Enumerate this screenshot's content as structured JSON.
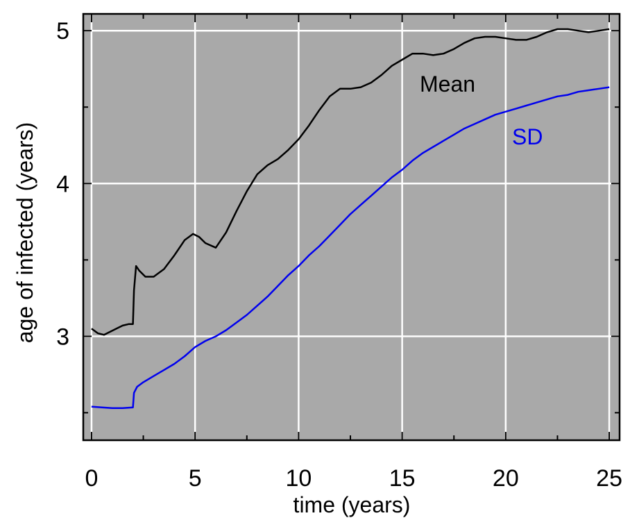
{
  "chart_data": {
    "type": "line",
    "title": "",
    "xlabel": "time (years)",
    "ylabel": "age of infected (years)",
    "xlim": [
      -0.4,
      25.5
    ],
    "ylim": [
      2.32,
      5.11
    ],
    "xticks": [
      "0",
      "5",
      "10",
      "15",
      "20",
      "25"
    ],
    "yticks": [
      "3",
      "4",
      "5"
    ],
    "grid": true,
    "background": "#a9a9a9",
    "series": [
      {
        "name": "Mean",
        "color": "#000000",
        "x": [
          0,
          0.3,
          0.6,
          0.9,
          1.2,
          1.5,
          1.8,
          2.0,
          2.05,
          2.15,
          2.3,
          2.6,
          3.0,
          3.5,
          4.0,
          4.5,
          4.9,
          5.2,
          5.5,
          6.0,
          6.5,
          7.0,
          7.5,
          8.0,
          8.5,
          9.0,
          9.5,
          10.0,
          10.5,
          11.0,
          11.5,
          12.0,
          12.5,
          13.0,
          13.5,
          14.0,
          14.5,
          15.0,
          15.5,
          16.0,
          16.5,
          17.0,
          17.5,
          18.0,
          18.5,
          19.0,
          19.5,
          20.0,
          20.5,
          21.0,
          21.5,
          22.0,
          22.5,
          23.0,
          23.5,
          24.0,
          24.5,
          25.0
        ],
        "values": [
          3.05,
          3.02,
          3.01,
          3.03,
          3.05,
          3.07,
          3.08,
          3.08,
          3.3,
          3.46,
          3.43,
          3.39,
          3.39,
          3.44,
          3.53,
          3.63,
          3.67,
          3.65,
          3.61,
          3.58,
          3.68,
          3.82,
          3.95,
          4.06,
          4.12,
          4.16,
          4.22,
          4.29,
          4.38,
          4.48,
          4.57,
          4.62,
          4.62,
          4.63,
          4.66,
          4.71,
          4.77,
          4.81,
          4.85,
          4.85,
          4.84,
          4.85,
          4.88,
          4.92,
          4.95,
          4.96,
          4.96,
          4.95,
          4.94,
          4.94,
          4.96,
          4.99,
          5.01,
          5.01,
          5.0,
          4.99,
          5.0,
          5.01
        ]
      },
      {
        "name": "SD",
        "color": "#0000ee",
        "x": [
          0,
          0.5,
          1.0,
          1.5,
          2.0,
          2.05,
          2.2,
          2.5,
          3.0,
          3.5,
          4.0,
          4.5,
          5.0,
          5.5,
          6.0,
          6.5,
          7.0,
          7.5,
          8.0,
          8.5,
          9.0,
          9.5,
          10.0,
          10.5,
          11.0,
          11.5,
          12.0,
          12.5,
          13.0,
          13.5,
          14.0,
          14.5,
          15.0,
          15.5,
          16.0,
          16.5,
          17.0,
          17.5,
          18.0,
          18.5,
          19.0,
          19.5,
          20.0,
          20.5,
          21.0,
          21.5,
          22.0,
          22.5,
          23.0,
          23.5,
          24.0,
          24.5,
          25.0
        ],
        "values": [
          2.54,
          2.535,
          2.53,
          2.53,
          2.535,
          2.63,
          2.67,
          2.7,
          2.74,
          2.78,
          2.82,
          2.87,
          2.93,
          2.97,
          3.0,
          3.04,
          3.09,
          3.14,
          3.2,
          3.26,
          3.33,
          3.4,
          3.46,
          3.53,
          3.59,
          3.66,
          3.73,
          3.8,
          3.86,
          3.92,
          3.98,
          4.04,
          4.09,
          4.15,
          4.2,
          4.24,
          4.28,
          4.32,
          4.36,
          4.39,
          4.42,
          4.45,
          4.47,
          4.49,
          4.51,
          4.53,
          4.55,
          4.57,
          4.58,
          4.6,
          4.61,
          4.62,
          4.63
        ]
      }
    ]
  }
}
